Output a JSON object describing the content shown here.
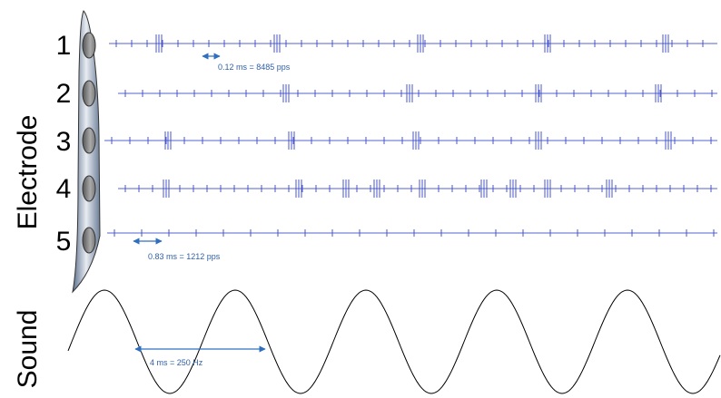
{
  "electrode_label": "Electrode",
  "sound_label": "Sound",
  "electrodes": [
    "1",
    "2",
    "3",
    "4",
    "5"
  ],
  "annotations": [
    "0.12 ms = 8485 pps",
    "0.83 ms = 1212 pps",
    "4 ms = 250 Hz"
  ]
}
